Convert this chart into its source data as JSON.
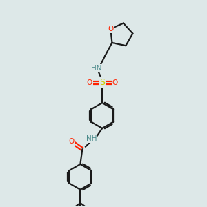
{
  "background_color": "#dde8e8",
  "bond_color": "#1a1a1a",
  "N_color": "#4a8a8a",
  "O_color": "#ff2200",
  "S_color": "#cccc00",
  "figsize": [
    3.0,
    3.0
  ],
  "dpi": 100,
  "xlim": [
    0,
    10
  ],
  "ylim": [
    0,
    10
  ]
}
